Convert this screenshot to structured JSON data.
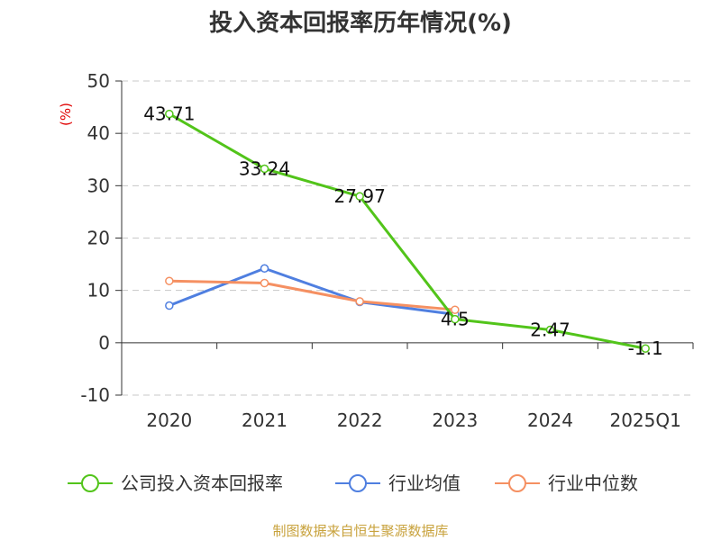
{
  "chart_data": {
    "type": "line",
    "title": "投入资本回报率历年情况(%)",
    "unit_label": "(%)",
    "categories": [
      "2020",
      "2021",
      "2022",
      "2023",
      "2024",
      "2025Q1"
    ],
    "ylim": [
      -10,
      50
    ],
    "yticks": [
      "-10",
      "0",
      "10",
      "20",
      "30",
      "40",
      "50"
    ],
    "grid": true,
    "legend_position": "bottom",
    "series": [
      {
        "name": "公司投入资本回报率",
        "color": "#52c41a",
        "values": [
          43.71,
          33.24,
          27.97,
          4.5,
          2.47,
          -1.1
        ],
        "labels": [
          "43.71",
          "33.24",
          "27.97",
          "4.5",
          "2.47",
          "-1.1"
        ]
      },
      {
        "name": "行业均值",
        "color": "#4f7fe0",
        "values": [
          7.1,
          14.2,
          7.8,
          5.4,
          null,
          null
        ]
      },
      {
        "name": "行业中位数",
        "color": "#f59062",
        "values": [
          11.8,
          11.4,
          7.9,
          6.3,
          null,
          null
        ]
      }
    ],
    "source": "制图数据来自恒生聚源数据库"
  }
}
